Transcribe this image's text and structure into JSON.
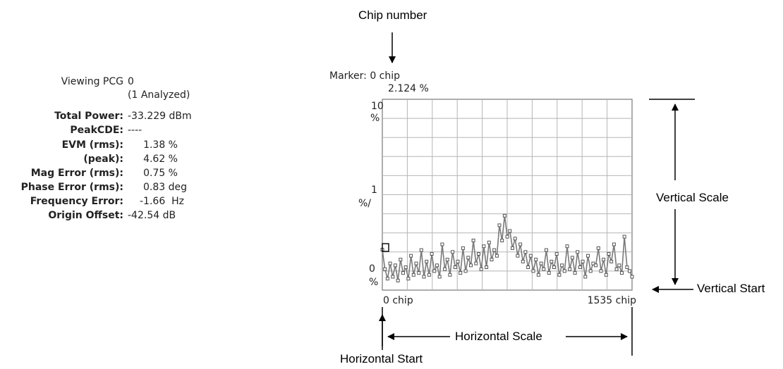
{
  "readout": {
    "viewing_label": "Viewing PCG",
    "viewing_value": "0",
    "analyzed": "(1 Analyzed)",
    "rows": [
      {
        "label": "Total Power:",
        "value": "-33.229 dBm"
      },
      {
        "label": "PeakCDE:",
        "value": "----"
      },
      {
        "label": "EVM (rms):",
        "value": "1.38 %"
      },
      {
        "label": "(peak):",
        "value": "4.62 %"
      },
      {
        "label": "Mag Error (rms):",
        "value": "0.75 %"
      },
      {
        "label": "Phase Error (rms):",
        "value": "0.83 deg"
      },
      {
        "label": "Frequency Error:",
        "value": "-1.66  Hz"
      },
      {
        "label": "Origin Offset:",
        "value": "-42.54 dB"
      }
    ]
  },
  "marker": {
    "line1": "Marker: 0 chip",
    "line2": "2.124 %"
  },
  "annotations": {
    "chip_number": "Chip number",
    "vertical_scale": "Vertical Scale",
    "vertical_start": "Vertical Start",
    "horizontal_scale": "Horizontal Scale",
    "horizontal_start": "Horizontal Start"
  },
  "chart_data": {
    "type": "line",
    "y_top_label": [
      "10",
      "%"
    ],
    "y_mid_label": [
      "1",
      "%/"
    ],
    "y_bottom_label": [
      "0",
      "%"
    ],
    "x_start_label": "0 chip",
    "x_end_label": "1535 chip",
    "xlim": [
      0,
      1535
    ],
    "ylim": [
      0,
      10
    ],
    "grid": true,
    "grid_divisions": {
      "x": 10,
      "y": 10
    },
    "marker_chip": 0,
    "marker_value": 2.124,
    "series": [
      {
        "color": "#7a7a7a",
        "x": [
          0,
          16,
          32,
          48,
          64,
          80,
          96,
          112,
          128,
          144,
          160,
          176,
          192,
          208,
          224,
          240,
          256,
          272,
          288,
          304,
          320,
          336,
          352,
          368,
          384,
          400,
          416,
          432,
          448,
          464,
          480,
          496,
          512,
          528,
          544,
          560,
          576,
          592,
          608,
          624,
          640,
          656,
          672,
          688,
          704,
          720,
          736,
          752,
          768,
          784,
          800,
          816,
          832,
          848,
          864,
          880,
          896,
          912,
          928,
          944,
          960,
          976,
          992,
          1008,
          1024,
          1040,
          1056,
          1072,
          1088,
          1104,
          1120,
          1136,
          1152,
          1168,
          1184,
          1200,
          1216,
          1232,
          1248,
          1264,
          1280,
          1296,
          1312,
          1328,
          1344,
          1360,
          1376,
          1392,
          1408,
          1424,
          1440,
          1456,
          1472,
          1488,
          1504,
          1520,
          1535
        ],
        "values": [
          2.12,
          1.1,
          0.6,
          1.4,
          0.7,
          1.3,
          0.5,
          1.6,
          0.9,
          1.2,
          0.6,
          1.8,
          0.8,
          1.4,
          0.9,
          2.1,
          0.7,
          1.5,
          0.8,
          1.9,
          1.0,
          1.3,
          0.7,
          2.4,
          1.1,
          1.6,
          0.8,
          2.0,
          1.2,
          1.5,
          0.9,
          2.2,
          1.0,
          1.7,
          1.3,
          2.6,
          1.4,
          1.9,
          1.1,
          2.3,
          1.2,
          2.5,
          1.6,
          2.1,
          1.8,
          3.4,
          2.6,
          3.9,
          2.8,
          3.1,
          2.2,
          2.7,
          1.8,
          2.4,
          1.5,
          2.0,
          1.2,
          1.8,
          1.0,
          1.6,
          0.8,
          1.4,
          1.1,
          2.1,
          0.9,
          1.5,
          1.2,
          1.9,
          0.8,
          1.3,
          1.0,
          2.3,
          1.1,
          1.7,
          0.9,
          2.0,
          1.2,
          1.5,
          0.7,
          1.8,
          1.0,
          1.4,
          1.3,
          2.2,
          1.0,
          1.6,
          0.8,
          1.9,
          1.5,
          2.4,
          1.1,
          1.3,
          0.9,
          2.8,
          1.2,
          1.0,
          0.7
        ]
      }
    ]
  }
}
